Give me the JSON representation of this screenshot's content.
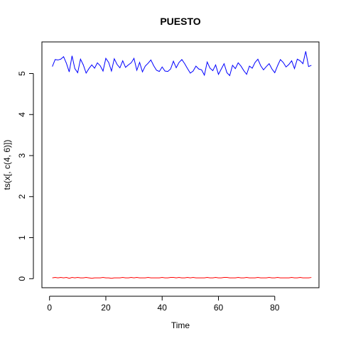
{
  "chart_data": {
    "type": "line",
    "title": "PUESTO",
    "xlabel": "Time",
    "ylabel": "ts(x[, c(4, 6)])",
    "xlim": [
      -2.7,
      95.7
    ],
    "ylim": [
      -0.22,
      5.77
    ],
    "x_ticks": [
      0,
      20,
      40,
      60,
      80
    ],
    "y_ticks": [
      0,
      1,
      2,
      3,
      4,
      5
    ],
    "series": [
      {
        "color": "#0000ff",
        "x_start": 1,
        "values": [
          5.17,
          5.34,
          5.33,
          5.35,
          5.41,
          5.25,
          5.04,
          5.43,
          5.12,
          5.02,
          5.35,
          5.21,
          5.01,
          5.12,
          5.21,
          5.13,
          5.26,
          5.19,
          5.06,
          5.37,
          5.27,
          5.06,
          5.36,
          5.22,
          5.14,
          5.31,
          5.15,
          5.21,
          5.26,
          5.37,
          5.08,
          5.27,
          5.04,
          5.18,
          5.25,
          5.33,
          5.19,
          5.08,
          5.05,
          5.16,
          5.06,
          5.05,
          5.11,
          5.3,
          5.14,
          5.27,
          5.34,
          5.24,
          5.12,
          5.01,
          5.06,
          5.18,
          5.11,
          5.09,
          4.96,
          5.28,
          5.13,
          5.07,
          5.21,
          4.98,
          5.11,
          5.24,
          5.02,
          4.95,
          5.2,
          5.12,
          5.26,
          5.18,
          5.07,
          4.98,
          5.18,
          5.13,
          5.27,
          5.35,
          5.19,
          5.09,
          5.17,
          5.24,
          5.11,
          5.02,
          5.19,
          5.34,
          5.27,
          5.16,
          5.22,
          5.31,
          5.12,
          5.35,
          5.31,
          5.24,
          5.54,
          5.17,
          5.2
        ]
      },
      {
        "color": "#ff0000",
        "x_start": 1,
        "values": [
          0.02,
          0.03,
          0.02,
          0.03,
          0.02,
          0.03,
          0.01,
          0.03,
          0.02,
          0.03,
          0.02,
          0.02,
          0.03,
          0.02,
          0.01,
          0.02,
          0.02,
          0.02,
          0.03,
          0.02,
          0.02,
          0.01,
          0.02,
          0.02,
          0.02,
          0.03,
          0.02,
          0.02,
          0.03,
          0.02,
          0.03,
          0.02,
          0.02,
          0.02,
          0.03,
          0.02,
          0.02,
          0.02,
          0.02,
          0.03,
          0.02,
          0.02,
          0.03,
          0.03,
          0.02,
          0.03,
          0.02,
          0.02,
          0.03,
          0.02,
          0.03,
          0.02,
          0.02,
          0.02,
          0.02,
          0.03,
          0.02,
          0.02,
          0.03,
          0.02,
          0.02,
          0.03,
          0.03,
          0.02,
          0.02,
          0.02,
          0.03,
          0.02,
          0.02,
          0.03,
          0.02,
          0.02,
          0.02,
          0.03,
          0.02,
          0.02,
          0.02,
          0.03,
          0.02,
          0.02,
          0.03,
          0.02,
          0.02,
          0.02,
          0.02,
          0.03,
          0.02,
          0.02,
          0.03,
          0.02,
          0.02,
          0.02,
          0.03
        ]
      }
    ],
    "grid": false,
    "legend": false
  }
}
